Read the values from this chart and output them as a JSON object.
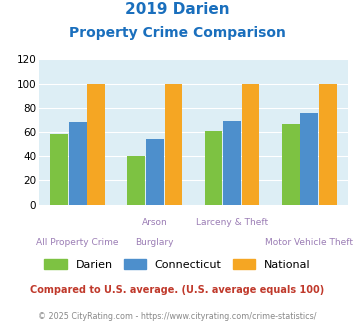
{
  "title_line1": "2019 Darien",
  "title_line2": "Property Crime Comparison",
  "title_color": "#1a6fbd",
  "x_labels_top": [
    "",
    "Arson",
    "Larceny & Theft",
    ""
  ],
  "x_labels_bottom": [
    "All Property Crime",
    "Burglary",
    "",
    "Motor Vehicle Theft"
  ],
  "darien_values": [
    58,
    40,
    61,
    67
  ],
  "connecticut_values": [
    68,
    54,
    69,
    76
  ],
  "national_values": [
    100,
    100,
    100,
    100
  ],
  "darien_color": "#7dc242",
  "connecticut_color": "#4d8fcc",
  "national_color": "#f5a623",
  "ylim": [
    0,
    120
  ],
  "yticks": [
    0,
    20,
    40,
    60,
    80,
    100,
    120
  ],
  "background_color": "#ddeef5",
  "legend_labels": [
    "Darien",
    "Connecticut",
    "National"
  ],
  "footnote1": "Compared to U.S. average. (U.S. average equals 100)",
  "footnote2": "© 2025 CityRating.com - https://www.cityrating.com/crime-statistics/",
  "footnote1_color": "#c0392b",
  "footnote2_color": "#888888",
  "label_color": "#9b7db5"
}
